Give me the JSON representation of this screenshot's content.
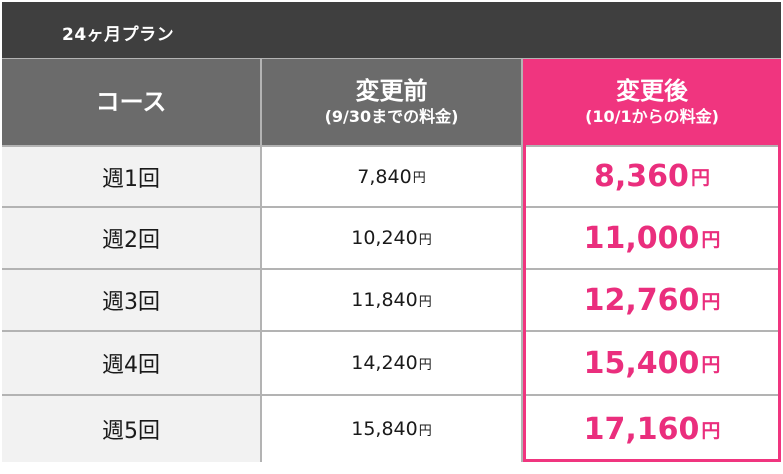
{
  "plan_title": "24ヶ月プラン",
  "header": {
    "course": "コース",
    "before_title": "変更前",
    "before_sub": "(9/30までの料金)",
    "after_title": "変更後",
    "after_sub": "(10/1からの料金)"
  },
  "currency": "円",
  "rows": [
    {
      "course": "週1回",
      "before": "7,840",
      "after": "8,360"
    },
    {
      "course": "週2回",
      "before": "10,240",
      "after": "11,000"
    },
    {
      "course": "週3回",
      "before": "11,840",
      "after": "12,760"
    },
    {
      "course": "週4回",
      "before": "14,240",
      "after": "15,400"
    },
    {
      "course": "週5回",
      "before": "15,840",
      "after": "17,160"
    }
  ],
  "colors": {
    "accent": "#f0357f",
    "header_bg": "#6b6b6b",
    "title_bg": "#3f3f3f"
  }
}
